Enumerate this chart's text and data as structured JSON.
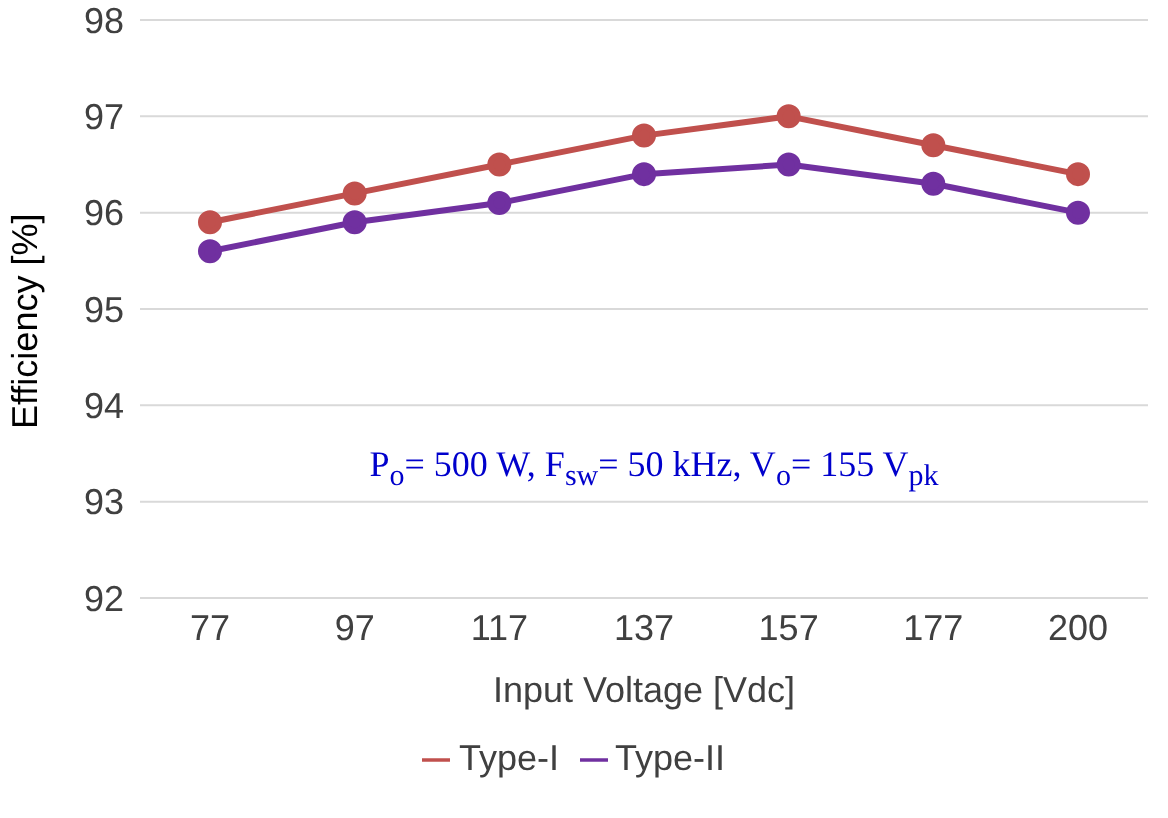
{
  "chart_data": {
    "type": "line",
    "xlabel": "Input Voltage [Vdc]",
    "ylabel": "Efficiency [%]",
    "categories": [
      "77",
      "97",
      "117",
      "137",
      "157",
      "177",
      "200"
    ],
    "series": [
      {
        "name": "Type-II",
        "color": "#7030a0",
        "values": [
          95.6,
          95.9,
          96.1,
          96.4,
          96.5,
          96.3,
          96.0
        ]
      },
      {
        "name": "Type-I",
        "color": "#c0504d",
        "values": [
          95.9,
          96.2,
          96.5,
          96.8,
          97.0,
          96.7,
          96.4
        ]
      }
    ],
    "ylim": [
      92,
      98
    ],
    "yticks": [
      92,
      93,
      94,
      95,
      96,
      97,
      98
    ],
    "grid": "y",
    "legend": "bottom",
    "marker": "circle",
    "line_style": "solid",
    "annotations": [
      "P$_{o}$= 500 W, F$_{sw}$= 50 kHz, V$_{o}$= 155 V$_{pk}$"
    ]
  }
}
